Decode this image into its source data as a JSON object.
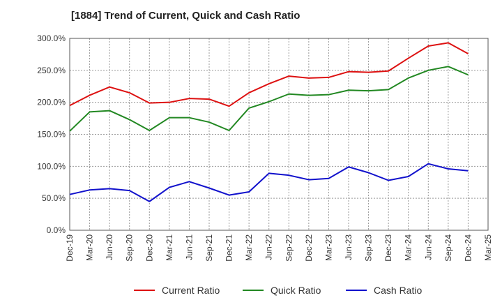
{
  "chart_data": {
    "type": "line",
    "title": "[1884]  Trend of Current, Quick and Cash Ratio",
    "xlabel": "",
    "ylabel": "",
    "ylim": [
      0,
      300
    ],
    "y_ticks": [
      "0.0%",
      "50.0%",
      "100.0%",
      "150.0%",
      "200.0%",
      "250.0%",
      "300.0%"
    ],
    "x_tick_labels": [
      "Dec-19",
      "Mar-20",
      "Jun-20",
      "Sep-20",
      "Dec-20",
      "Mar-21",
      "Jun-21",
      "Sep-21",
      "Dec-21",
      "Mar-22",
      "Jun-22",
      "Sep-22",
      "Dec-22",
      "Mar-23",
      "Jun-23",
      "Sep-23",
      "Dec-23",
      "Mar-24",
      "Jun-24",
      "Sep-24",
      "Dec-24",
      "Mar-25"
    ],
    "categories": [
      "Dec-19",
      "Mar-20",
      "Jun-20",
      "Sep-20",
      "Dec-20",
      "Mar-21",
      "Jun-21",
      "Sep-21",
      "Dec-21",
      "Mar-22",
      "Jun-22",
      "Sep-22",
      "Dec-22",
      "Mar-23",
      "Jun-23",
      "Sep-23",
      "Dec-23",
      "Mar-24",
      "Jun-24",
      "Sep-24",
      "Dec-24"
    ],
    "grid": true,
    "legend_position": "bottom",
    "series": [
      {
        "name": "Current Ratio",
        "color": "#dd1111",
        "values": [
          195,
          211,
          224,
          215,
          199,
          200,
          206,
          205,
          194,
          215,
          229,
          241,
          238,
          239,
          248,
          247,
          249,
          269,
          288,
          293,
          276
        ]
      },
      {
        "name": "Quick Ratio",
        "color": "#228822",
        "values": [
          155,
          185,
          187,
          173,
          156,
          176,
          176,
          169,
          156,
          191,
          201,
          213,
          211,
          212,
          219,
          218,
          220,
          238,
          250,
          256,
          243
        ]
      },
      {
        "name": "Cash Ratio",
        "color": "#1111cc",
        "values": [
          56,
          63,
          65,
          62,
          45,
          67,
          76,
          66,
          55,
          60,
          89,
          86,
          79,
          81,
          99,
          90,
          78,
          84,
          104,
          96,
          93
        ]
      }
    ]
  }
}
